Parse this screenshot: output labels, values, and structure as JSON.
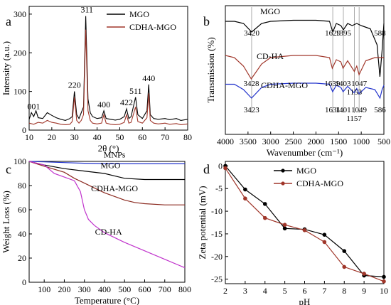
{
  "chart_data": [
    {
      "panel": "a",
      "type": "line",
      "xlabel": "2θ (°)",
      "ylabel": "Intensity (a.u.)",
      "xlim": [
        10,
        80
      ],
      "ylim": [
        0,
        320
      ],
      "xticks": [
        10,
        20,
        30,
        40,
        50,
        60,
        70,
        80
      ],
      "yticks": [
        0,
        100,
        200,
        300
      ],
      "legend": "top-right",
      "series": [
        {
          "name": "MGO",
          "color": "#000000",
          "points": [
            [
              10,
              28
            ],
            [
              11,
              45
            ],
            [
              12,
              35
            ],
            [
              13,
              50
            ],
            [
              14,
              32
            ],
            [
              16,
              30
            ],
            [
              18,
              45
            ],
            [
              20,
              38
            ],
            [
              22,
              32
            ],
            [
              24,
              28
            ],
            [
              26,
              25
            ],
            [
              28,
              30
            ],
            [
              29,
              35
            ],
            [
              30,
              100
            ],
            [
              31,
              40
            ],
            [
              32,
              30
            ],
            [
              33,
              45
            ],
            [
              34,
              60
            ],
            [
              35,
              295
            ],
            [
              36,
              80
            ],
            [
              37,
              45
            ],
            [
              38,
              35
            ],
            [
              40,
              30
            ],
            [
              42,
              32
            ],
            [
              43,
              50
            ],
            [
              44,
              30
            ],
            [
              46,
              28
            ],
            [
              48,
              26
            ],
            [
              50,
              28
            ],
            [
              52,
              35
            ],
            [
              53,
              55
            ],
            [
              54,
              30
            ],
            [
              55,
              35
            ],
            [
              57,
              85
            ],
            [
              58,
              40
            ],
            [
              60,
              30
            ],
            [
              62,
              50
            ],
            [
              62.8,
              118
            ],
            [
              63.5,
              40
            ],
            [
              65,
              30
            ],
            [
              67,
              28
            ],
            [
              70,
              30
            ],
            [
              72,
              27
            ],
            [
              75,
              30
            ],
            [
              77,
              25
            ],
            [
              80,
              28
            ]
          ]
        },
        {
          "name": "CDHA-MGO",
          "color": "#a0362a",
          "points": [
            [
              10,
              18
            ],
            [
              12,
              15
            ],
            [
              14,
              20
            ],
            [
              16,
              18
            ],
            [
              18,
              25
            ],
            [
              20,
              20
            ],
            [
              22,
              18
            ],
            [
              24,
              15
            ],
            [
              26,
              14
            ],
            [
              28,
              15
            ],
            [
              29,
              22
            ],
            [
              30,
              85
            ],
            [
              31,
              25
            ],
            [
              32,
              18
            ],
            [
              33,
              25
            ],
            [
              34,
              40
            ],
            [
              35,
              260
            ],
            [
              36,
              50
            ],
            [
              37,
              25
            ],
            [
              38,
              18
            ],
            [
              40,
              16
            ],
            [
              42,
              18
            ],
            [
              43,
              40
            ],
            [
              44,
              18
            ],
            [
              46,
              15
            ],
            [
              48,
              14
            ],
            [
              50,
              15
            ],
            [
              52,
              20
            ],
            [
              53,
              40
            ],
            [
              54,
              18
            ],
            [
              55,
              20
            ],
            [
              57,
              60
            ],
            [
              58,
              22
            ],
            [
              60,
              18
            ],
            [
              62,
              32
            ],
            [
              62.8,
              95
            ],
            [
              63.5,
              25
            ],
            [
              65,
              18
            ],
            [
              67,
              16
            ],
            [
              70,
              18
            ],
            [
              72,
              15
            ],
            [
              75,
              17
            ],
            [
              77,
              14
            ],
            [
              80,
              16
            ]
          ]
        }
      ],
      "peak_labels": [
        {
          "text": "001",
          "x": 12,
          "y": 45
        },
        {
          "text": "220",
          "x": 30,
          "y": 100
        },
        {
          "text": "311",
          "x": 35.5,
          "y": 295
        },
        {
          "text": "400",
          "x": 43,
          "y": 50
        },
        {
          "text": "422",
          "x": 53,
          "y": 55
        },
        {
          "text": "511",
          "x": 57,
          "y": 85
        },
        {
          "text": "440",
          "x": 62.8,
          "y": 118
        }
      ]
    },
    {
      "panel": "b",
      "type": "line",
      "xlabel": "Wavenumber (cm⁻¹)",
      "ylabel": "Transmission (%)",
      "xlim": [
        4000,
        500
      ],
      "xticks": [
        4000,
        3500,
        3000,
        2500,
        2000,
        1500,
        1000,
        500
      ],
      "reference_lines": [
        3420,
        1629,
        1395,
        1153,
        1047
      ],
      "series": [
        {
          "name": "MGO",
          "color": "#000000",
          "points": [
            [
              4000,
              0.08
            ],
            [
              3800,
              0.08
            ],
            [
              3600,
              0.1
            ],
            [
              3420,
              0.18
            ],
            [
              3200,
              0.1
            ],
            [
              3000,
              0.08
            ],
            [
              2500,
              0.07
            ],
            [
              2000,
              0.07
            ],
            [
              1700,
              0.08
            ],
            [
              1629,
              0.18
            ],
            [
              1550,
              0.1
            ],
            [
              1450,
              0.12
            ],
            [
              1395,
              0.16
            ],
            [
              1300,
              0.1
            ],
            [
              1200,
              0.12
            ],
            [
              1100,
              0.1
            ],
            [
              1000,
              0.12
            ],
            [
              800,
              0.15
            ],
            [
              650,
              0.3
            ],
            [
              588,
              0.6
            ],
            [
              540,
              0.35
            ],
            [
              500,
              0.1
            ]
          ]
        },
        {
          "name": "CD-HA",
          "color": "#a0362a",
          "points": [
            [
              4000,
              0.4
            ],
            [
              3800,
              0.42
            ],
            [
              3600,
              0.5
            ],
            [
              3428,
              0.62
            ],
            [
              3200,
              0.48
            ],
            [
              3000,
              0.42
            ],
            [
              2500,
              0.4
            ],
            [
              2000,
              0.4
            ],
            [
              1700,
              0.42
            ],
            [
              1639,
              0.52
            ],
            [
              1550,
              0.44
            ],
            [
              1450,
              0.46
            ],
            [
              1403,
              0.52
            ],
            [
              1300,
              0.45
            ],
            [
              1153,
              0.55
            ],
            [
              1100,
              0.5
            ],
            [
              1047,
              0.58
            ],
            [
              900,
              0.45
            ],
            [
              700,
              0.42
            ],
            [
              500,
              0.42
            ]
          ]
        },
        {
          "name": "CDHA-MGO",
          "color": "#2233cc",
          "points": [
            [
              4000,
              0.67
            ],
            [
              3800,
              0.67
            ],
            [
              3600,
              0.72
            ],
            [
              3423,
              0.8
            ],
            [
              3200,
              0.7
            ],
            [
              3000,
              0.67
            ],
            [
              2500,
              0.66
            ],
            [
              2000,
              0.66
            ],
            [
              1700,
              0.67
            ],
            [
              1631,
              0.74
            ],
            [
              1550,
              0.68
            ],
            [
              1450,
              0.7
            ],
            [
              1401,
              0.74
            ],
            [
              1300,
              0.69
            ],
            [
              1157,
              0.75
            ],
            [
              1100,
              0.71
            ],
            [
              1049,
              0.76
            ],
            [
              900,
              0.7
            ],
            [
              700,
              0.72
            ],
            [
              586,
              0.8
            ],
            [
              540,
              0.72
            ],
            [
              500,
              0.68
            ]
          ]
        }
      ],
      "series_labels": [
        "MGO",
        "CD-HA",
        "CDHA-MGO"
      ],
      "peak_labels": [
        {
          "text": "3420",
          "x": 3420,
          "row": 0
        },
        {
          "text": "1629",
          "x": 1629,
          "row": 0
        },
        {
          "text": "1395",
          "x": 1395,
          "row": 0
        },
        {
          "text": "588",
          "x": 588,
          "row": 0
        },
        {
          "text": "3428",
          "x": 3428,
          "row": 1
        },
        {
          "text": "1639",
          "x": 1639,
          "row": 1
        },
        {
          "text": "1403",
          "x": 1403,
          "row": 1
        },
        {
          "text": "1153",
          "x": 1153,
          "row": 1
        },
        {
          "text": "1047",
          "x": 1047,
          "row": 1
        },
        {
          "text": "3423",
          "x": 3423,
          "row": 2
        },
        {
          "text": "1631",
          "x": 1631,
          "row": 2
        },
        {
          "text": "1401",
          "x": 1401,
          "row": 2
        },
        {
          "text": "1157",
          "x": 1157,
          "row": 2
        },
        {
          "text": "1049",
          "x": 1049,
          "row": 2
        },
        {
          "text": "586",
          "x": 586,
          "row": 2
        }
      ]
    },
    {
      "panel": "c",
      "type": "line",
      "xlabel": "Temperature (°C)",
      "ylabel": "Weight Loss (%)",
      "xlim": [
        25,
        800
      ],
      "ylim": [
        0,
        100
      ],
      "xticks": [
        100,
        200,
        300,
        400,
        500,
        600,
        700,
        800
      ],
      "yticks": [
        0,
        20,
        40,
        60,
        80,
        100
      ],
      "series": [
        {
          "name": "MNPs",
          "color": "#2233cc",
          "points": [
            [
              25,
              100
            ],
            [
              100,
              99.6
            ],
            [
              200,
              99
            ],
            [
              300,
              98.5
            ],
            [
              400,
              98.2
            ],
            [
              500,
              98
            ],
            [
              600,
              98
            ],
            [
              700,
              98
            ],
            [
              800,
              98
            ]
          ]
        },
        {
          "name": "MGO",
          "color": "#000000",
          "points": [
            [
              25,
              100
            ],
            [
              100,
              97
            ],
            [
              200,
              94
            ],
            [
              300,
              92
            ],
            [
              400,
              90
            ],
            [
              450,
              88
            ],
            [
              500,
              86
            ],
            [
              600,
              85
            ],
            [
              700,
              85
            ],
            [
              800,
              85
            ]
          ]
        },
        {
          "name": "CDHA-MGO",
          "color": "#8b2a20",
          "points": [
            [
              25,
              100
            ],
            [
              100,
              96
            ],
            [
              200,
              91
            ],
            [
              250,
              86
            ],
            [
              300,
              82
            ],
            [
              350,
              78
            ],
            [
              400,
              74
            ],
            [
              450,
              71
            ],
            [
              500,
              68
            ],
            [
              550,
              66
            ],
            [
              600,
              65
            ],
            [
              700,
              64
            ],
            [
              800,
              64
            ]
          ]
        },
        {
          "name": "CD-HA",
          "color": "#c033cc",
          "points": [
            [
              25,
              100
            ],
            [
              100,
              97
            ],
            [
              150,
              90
            ],
            [
              200,
              87
            ],
            [
              250,
              84
            ],
            [
              280,
              75
            ],
            [
              300,
              60
            ],
            [
              320,
              52
            ],
            [
              350,
              47
            ],
            [
              400,
              41
            ],
            [
              500,
              33
            ],
            [
              600,
              26
            ],
            [
              700,
              19
            ],
            [
              800,
              12
            ]
          ]
        }
      ],
      "series_labels": [
        {
          "text": "MNPs",
          "x": 450,
          "y": 101
        },
        {
          "text": "MGO",
          "x": 430,
          "y": 92
        },
        {
          "text": "CDHA-MGO",
          "x": 450,
          "y": 73
        },
        {
          "text": "CD-HA",
          "x": 420,
          "y": 37
        }
      ]
    },
    {
      "panel": "d",
      "type": "line",
      "xlabel": "pH",
      "ylabel": "Zeta potential (mV)",
      "xlim": [
        2,
        10
      ],
      "ylim": [
        -26,
        1
      ],
      "xticks": [
        2,
        3,
        4,
        5,
        6,
        7,
        8,
        9,
        10
      ],
      "yticks": [
        0,
        -5,
        -10,
        -15,
        -20,
        -25
      ],
      "legend": "top-right",
      "series": [
        {
          "name": "MGO",
          "color": "#000000",
          "points": [
            [
              2,
              0
            ],
            [
              3,
              -5.2
            ],
            [
              4,
              -8.4
            ],
            [
              5,
              -13.8
            ],
            [
              6,
              -14.0
            ],
            [
              7,
              -15.2
            ],
            [
              8,
              -18.8
            ],
            [
              9,
              -24.2
            ],
            [
              10,
              -24.5
            ]
          ]
        },
        {
          "name": "CDHA-MGO",
          "color": "#a0362a",
          "points": [
            [
              2,
              -0.5
            ],
            [
              3,
              -7.2
            ],
            [
              4,
              -11.5
            ],
            [
              5,
              -13.0
            ],
            [
              6,
              -14.2
            ],
            [
              7,
              -16.8
            ],
            [
              8,
              -22.3
            ],
            [
              9,
              -23.8
            ],
            [
              10,
              -25.5
            ]
          ]
        }
      ]
    }
  ]
}
